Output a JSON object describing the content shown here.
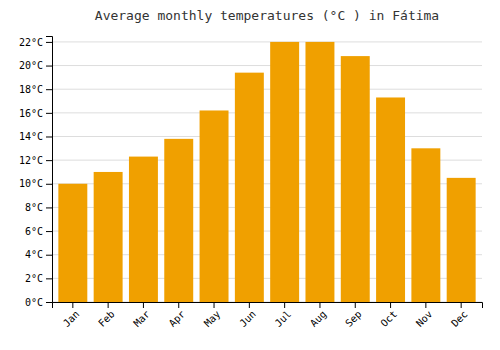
{
  "chart_data": {
    "type": "bar",
    "title": "Average monthly temperatures (°C ) in Fátima",
    "categories": [
      "Jan",
      "Feb",
      "Mar",
      "Apr",
      "May",
      "Jun",
      "Jul",
      "Aug",
      "Sep",
      "Oct",
      "Nov",
      "Dec"
    ],
    "values": [
      10.0,
      11.0,
      12.3,
      13.8,
      16.2,
      19.4,
      22.0,
      22.0,
      20.8,
      17.3,
      13.0,
      10.5
    ],
    "color": "#F0A000",
    "ylim": [
      0,
      22.5
    ],
    "yticks": [
      {
        "value": 0,
        "label": "0°C"
      },
      {
        "value": 2,
        "label": "2°C"
      },
      {
        "value": 4,
        "label": "4°C"
      },
      {
        "value": 6,
        "label": "6°C"
      },
      {
        "value": 8,
        "label": "8°C"
      },
      {
        "value": 10,
        "label": "10°C"
      },
      {
        "value": 12,
        "label": "12°C"
      },
      {
        "value": 14,
        "label": "14°C"
      },
      {
        "value": 16,
        "label": "16°C"
      },
      {
        "value": 18,
        "label": "18°C"
      },
      {
        "value": 20,
        "label": "20°C"
      },
      {
        "value": 22,
        "label": "22°C"
      }
    ],
    "grid": true
  }
}
